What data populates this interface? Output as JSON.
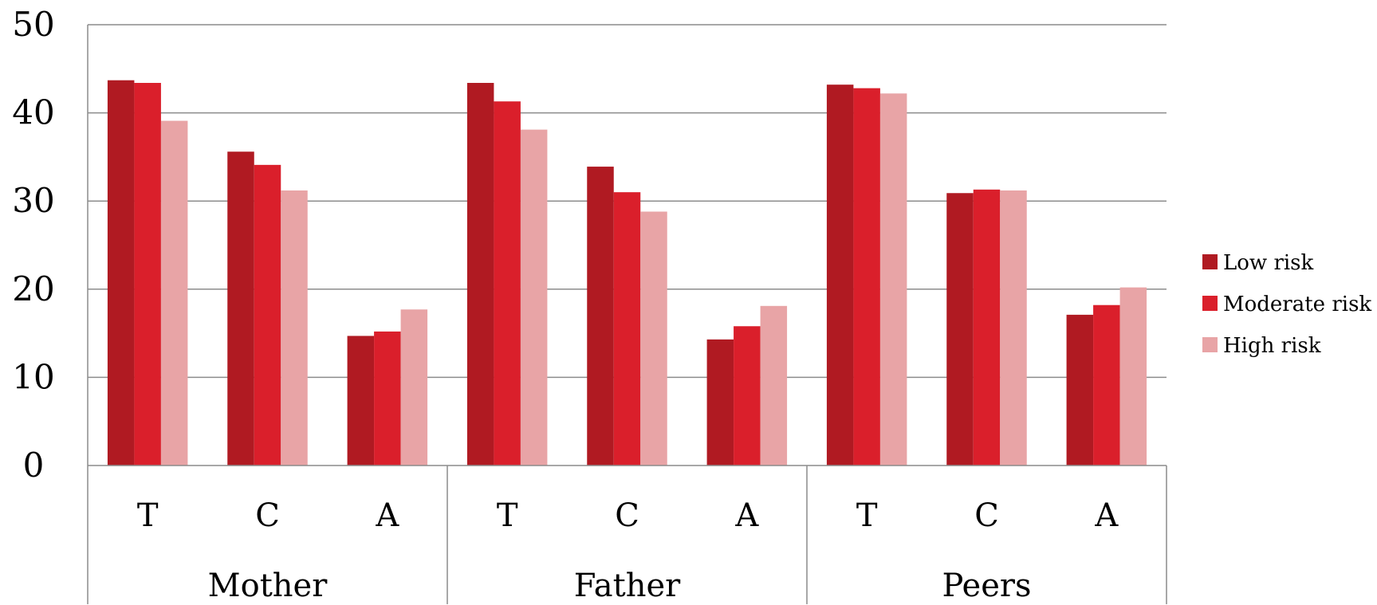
{
  "chart_data": {
    "type": "bar",
    "groups": [
      "Mother",
      "Father",
      "Peers"
    ],
    "categories": [
      "T",
      "C",
      "A",
      "T",
      "C",
      "A",
      "T",
      "C",
      "A"
    ],
    "series": [
      {
        "name": "Low risk",
        "color": "#b01a22",
        "values": [
          43.7,
          35.6,
          14.7,
          43.4,
          33.9,
          14.3,
          43.2,
          30.9,
          17.1
        ]
      },
      {
        "name": "Moderate risk",
        "color": "#da1f2b",
        "values": [
          43.4,
          34.1,
          15.2,
          41.3,
          31.0,
          15.8,
          42.8,
          31.3,
          18.2
        ]
      },
      {
        "name": "High risk",
        "color": "#e8a4a6",
        "values": [
          39.1,
          31.2,
          17.7,
          38.1,
          28.8,
          18.1,
          42.2,
          31.2,
          20.2
        ]
      }
    ],
    "ylim": [
      0,
      50
    ],
    "yticks": [
      0,
      10,
      20,
      30,
      40,
      50
    ],
    "grid": true,
    "legend_position": "right"
  }
}
